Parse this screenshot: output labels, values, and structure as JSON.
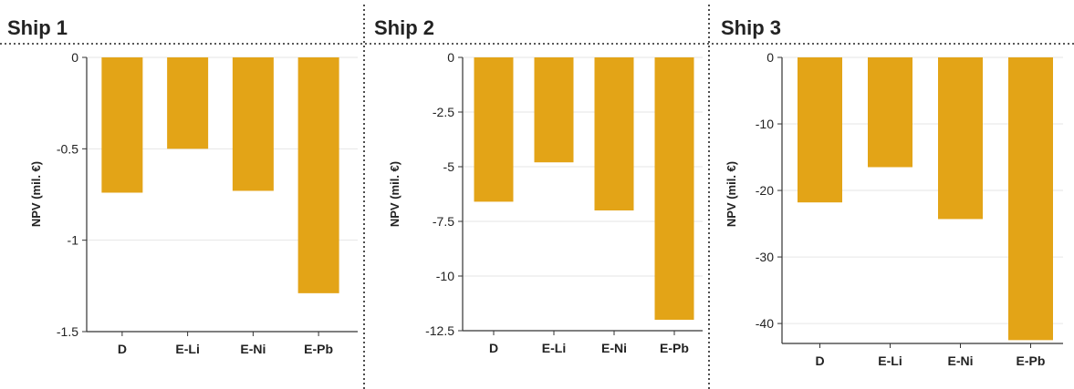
{
  "style": {
    "bar_color": "#E3A417",
    "grid_color": "#E6E6E6",
    "axis_color": "#333333",
    "separator_style": "dotted"
  },
  "chart_data": [
    {
      "type": "bar",
      "title": "Ship 1",
      "ylabel": "NPV (mil. €)",
      "categories": [
        "D",
        "E-Li",
        "E-Ni",
        "E-Pb"
      ],
      "values": [
        -0.74,
        -0.5,
        -0.73,
        -1.29
      ],
      "ylim": [
        -1.5,
        0
      ],
      "yticks": [
        0,
        -0.5,
        -1,
        -1.5
      ],
      "ytick_labels": [
        "0",
        "-0.5",
        "-1",
        "-1.5"
      ],
      "grid": "horizontal"
    },
    {
      "type": "bar",
      "title": "Ship 2",
      "ylabel": "NPV (mil. €)",
      "categories": [
        "D",
        "E-Li",
        "E-Ni",
        "E-Pb"
      ],
      "values": [
        -6.6,
        -4.8,
        -7.0,
        -12.0
      ],
      "ylim": [
        -12.5,
        0
      ],
      "yticks": [
        0,
        -2.5,
        -5,
        -7.5,
        -10,
        -12.5
      ],
      "ytick_labels": [
        "0",
        "-2.5",
        "-5",
        "-7.5",
        "-10",
        "-12.5"
      ],
      "grid": "horizontal"
    },
    {
      "type": "bar",
      "title": "Ship 3",
      "ylabel": "NPV (mil. €)",
      "categories": [
        "D",
        "E-Li",
        "E-Ni",
        "E-Pb"
      ],
      "values": [
        -21.8,
        -16.5,
        -24.3,
        -42.5
      ],
      "ylim": [
        -43,
        0
      ],
      "yticks": [
        0,
        -10,
        -20,
        -30,
        -40
      ],
      "ytick_labels": [
        "0",
        "-10",
        "-20",
        "-30",
        "-40"
      ],
      "grid": "horizontal"
    }
  ]
}
